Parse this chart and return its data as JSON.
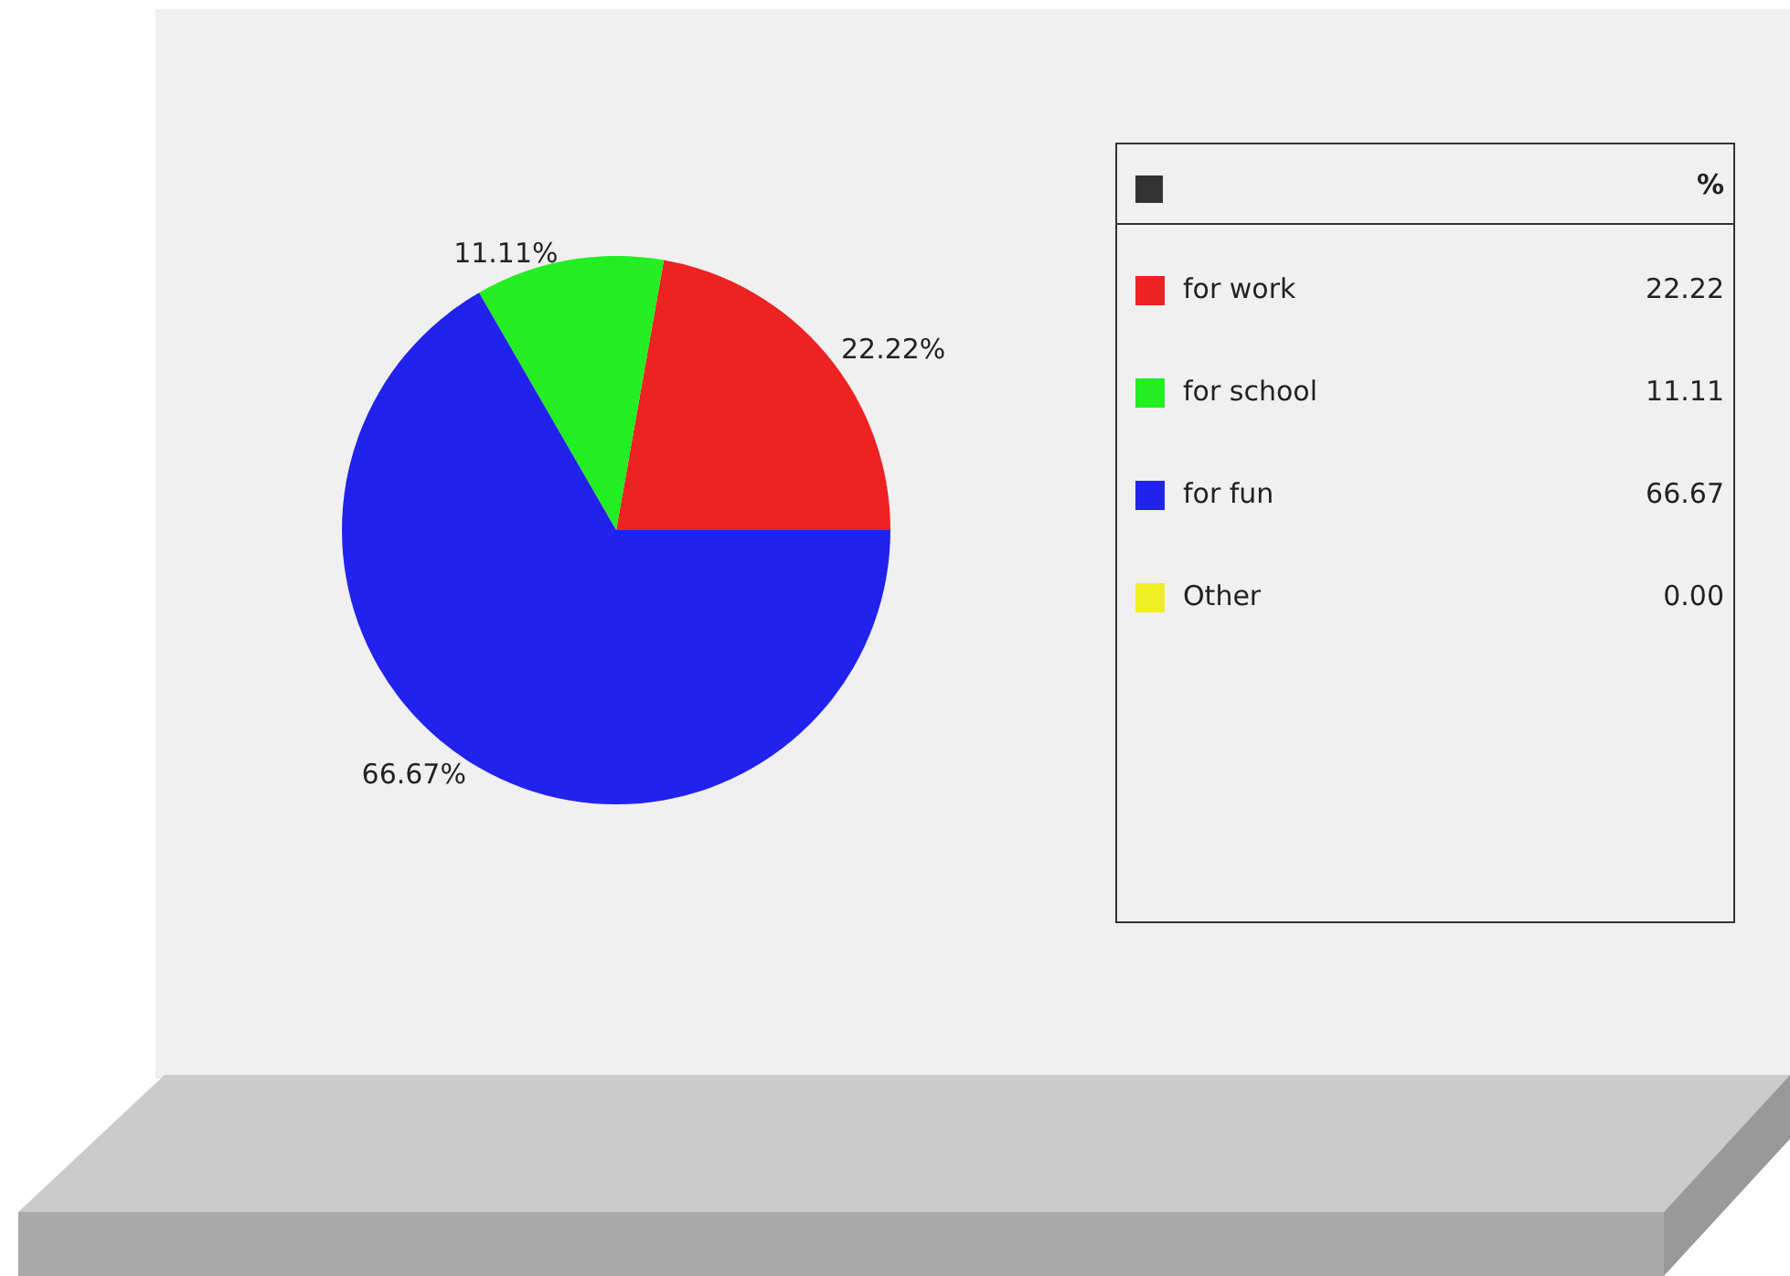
{
  "chart_data": {
    "type": "pie",
    "categories": [
      "for work",
      "for school",
      "for fun",
      "Other"
    ],
    "values": [
      22.22,
      11.11,
      66.67,
      0
    ],
    "colors": [
      "#ee2222",
      "#22ee22",
      "#2222ee",
      "#eeee22"
    ],
    "value_labels": [
      "22.22",
      "11.11",
      "66.67",
      "0.00"
    ],
    "legend": "right",
    "legend_title": "%"
  }
}
